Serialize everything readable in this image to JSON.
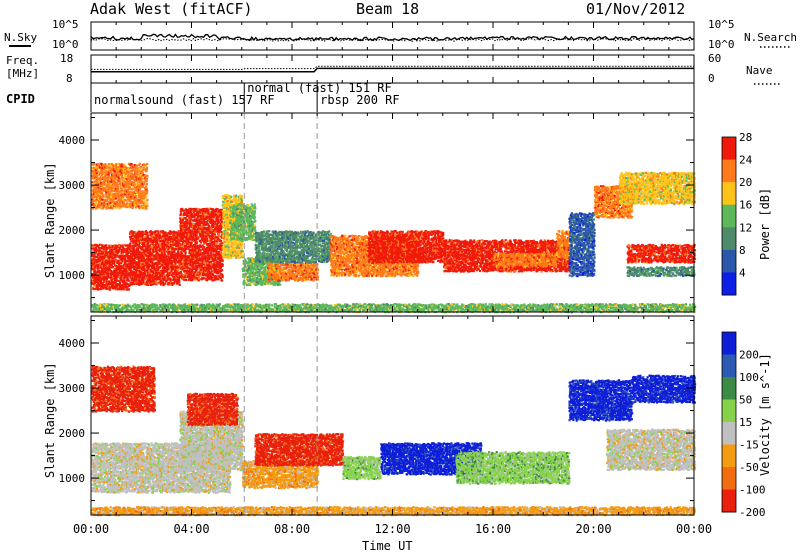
{
  "header": {
    "radar": "Adak West (fitACF)",
    "beam": "Beam 18",
    "date": "01/Nov/2012"
  },
  "noise_panel": {
    "left_label": "N.Sky",
    "right_label": "N.Search",
    "left_ticks": [
      "10^5",
      "10^0"
    ],
    "right_ticks": [
      "10^5",
      "10^0"
    ]
  },
  "freq_panel": {
    "left_label_line1": "Freq.",
    "left_label_line2": "[MHz]",
    "right_label": "Nave",
    "left_ticks": [
      "18",
      "8"
    ],
    "right_ticks": [
      "60",
      "0"
    ]
  },
  "cpid_panel": {
    "label": "CPID",
    "modes": [
      {
        "name": "normalsound (fast) 157 RF",
        "start_hour": 0,
        "end_hour": 6.1
      },
      {
        "name": "normal (fast) 151 RF",
        "start_hour": 6.1,
        "end_hour": 9.0
      },
      {
        "name": "rbsp 200 RF",
        "start_hour": 9.0,
        "end_hour": 24
      }
    ]
  },
  "chart_data": [
    {
      "type": "heatmap",
      "title": "",
      "ylabel": "Slant Range [km]",
      "xlabel": "",
      "x_range_hours": [
        0,
        24
      ],
      "ylim": [
        180,
        4600
      ],
      "y_ticks": [
        "1000",
        "2000",
        "3000",
        "4000"
      ],
      "colorbar": {
        "label": "Power [dB]",
        "ticks": [
          "4",
          "8",
          "12",
          "16",
          "20",
          "24",
          "28"
        ],
        "colors": [
          "#0d1fe6",
          "#2b57a8",
          "#4f8a6a",
          "#5cb85a",
          "#ffc31a",
          "#ff7a1a",
          "#f01a0a"
        ]
      },
      "echo_regions": [
        {
          "h0": 0.0,
          "h1": 1.5,
          "r0": 700,
          "r1": 1700,
          "c": 6
        },
        {
          "h0": 1.5,
          "h1": 3.5,
          "r0": 800,
          "r1": 2000,
          "c": 6
        },
        {
          "h0": 3.5,
          "h1": 5.2,
          "r0": 900,
          "r1": 2500,
          "c": 6
        },
        {
          "h0": 5.2,
          "h1": 6.0,
          "r0": 1400,
          "r1": 2800,
          "c": 4
        },
        {
          "h0": 5.5,
          "h1": 6.5,
          "r0": 1800,
          "r1": 2600,
          "c": 3
        },
        {
          "h0": 0.0,
          "h1": 2.2,
          "r0": 2500,
          "r1": 3500,
          "c": 5
        },
        {
          "h0": 6.0,
          "h1": 7.5,
          "r0": 800,
          "r1": 1400,
          "c": 3
        },
        {
          "h0": 7.0,
          "h1": 9.0,
          "r0": 900,
          "r1": 1300,
          "c": 5
        },
        {
          "h0": 6.5,
          "h1": 9.5,
          "r0": 1300,
          "r1": 2000,
          "c": 2
        },
        {
          "h0": 9.5,
          "h1": 13.0,
          "r0": 1000,
          "r1": 1900,
          "c": 5
        },
        {
          "h0": 11.0,
          "h1": 14.0,
          "r0": 1300,
          "r1": 2000,
          "c": 6
        },
        {
          "h0": 14.0,
          "h1": 19.0,
          "r0": 1100,
          "r1": 1800,
          "c": 6
        },
        {
          "h0": 16.0,
          "h1": 18.5,
          "r0": 1200,
          "r1": 1500,
          "c": 5
        },
        {
          "h0": 18.5,
          "h1": 19.0,
          "r0": 1400,
          "r1": 2000,
          "c": 5
        },
        {
          "h0": 19.0,
          "h1": 20.0,
          "r0": 1000,
          "r1": 2400,
          "c": 1
        },
        {
          "h0": 20.0,
          "h1": 21.5,
          "r0": 2300,
          "r1": 3000,
          "c": 5
        },
        {
          "h0": 21.0,
          "h1": 24.0,
          "r0": 2600,
          "r1": 3300,
          "c": 4
        },
        {
          "h0": 21.3,
          "h1": 24.0,
          "r0": 1300,
          "r1": 1700,
          "c": 6
        },
        {
          "h0": 21.3,
          "h1": 24.0,
          "r0": 1000,
          "r1": 1200,
          "c": 2
        },
        {
          "h0": 0.0,
          "h1": 24.0,
          "r0": 200,
          "r1": 380,
          "c": 3
        }
      ]
    },
    {
      "type": "heatmap",
      "title": "",
      "ylabel": "Slant Range [km]",
      "xlabel": "Time UT",
      "x_range_hours": [
        0,
        24
      ],
      "x_ticks": [
        "00:00",
        "04:00",
        "08:00",
        "12:00",
        "16:00",
        "20:00",
        "00:00"
      ],
      "ylim": [
        180,
        4600
      ],
      "y_ticks": [
        "1000",
        "2000",
        "3000",
        "4000"
      ],
      "colorbar": {
        "label": "Velocity [m s^-1]",
        "ticks": [
          "200",
          "100",
          "50",
          "15",
          "-15",
          "-50",
          "-100",
          "-200"
        ],
        "colors": [
          "#0e1ed8",
          "#2c5ab0",
          "#3c8a48",
          "#86d24a",
          "#c0c0c0",
          "#f39c12",
          "#f26d0f",
          "#e8200c"
        ]
      },
      "echo_regions": [
        {
          "h0": 0.0,
          "h1": 5.5,
          "r0": 700,
          "r1": 1800,
          "c": 4
        },
        {
          "h0": 3.5,
          "h1": 6.0,
          "r0": 1200,
          "r1": 2500,
          "c": 4
        },
        {
          "h0": 0.0,
          "h1": 2.5,
          "r0": 2500,
          "r1": 3500,
          "c": 7
        },
        {
          "h0": 3.8,
          "h1": 5.8,
          "r0": 2200,
          "r1": 2900,
          "c": 7
        },
        {
          "h0": 6.0,
          "h1": 9.0,
          "r0": 800,
          "r1": 1400,
          "c": 5
        },
        {
          "h0": 6.5,
          "h1": 10.0,
          "r0": 1300,
          "r1": 2000,
          "c": 7
        },
        {
          "h0": 10.0,
          "h1": 11.5,
          "r0": 1000,
          "r1": 1500,
          "c": 3
        },
        {
          "h0": 11.5,
          "h1": 15.5,
          "r0": 1100,
          "r1": 1800,
          "c": 0
        },
        {
          "h0": 14.5,
          "h1": 19.0,
          "r0": 900,
          "r1": 1600,
          "c": 3
        },
        {
          "h0": 19.0,
          "h1": 21.5,
          "r0": 2300,
          "r1": 3200,
          "c": 0
        },
        {
          "h0": 21.5,
          "h1": 24.0,
          "r0": 2700,
          "r1": 3300,
          "c": 0
        },
        {
          "h0": 20.5,
          "h1": 24.0,
          "r0": 1200,
          "r1": 2100,
          "c": 4
        },
        {
          "h0": 0.0,
          "h1": 24.0,
          "r0": 200,
          "r1": 380,
          "c": 5
        }
      ]
    }
  ]
}
